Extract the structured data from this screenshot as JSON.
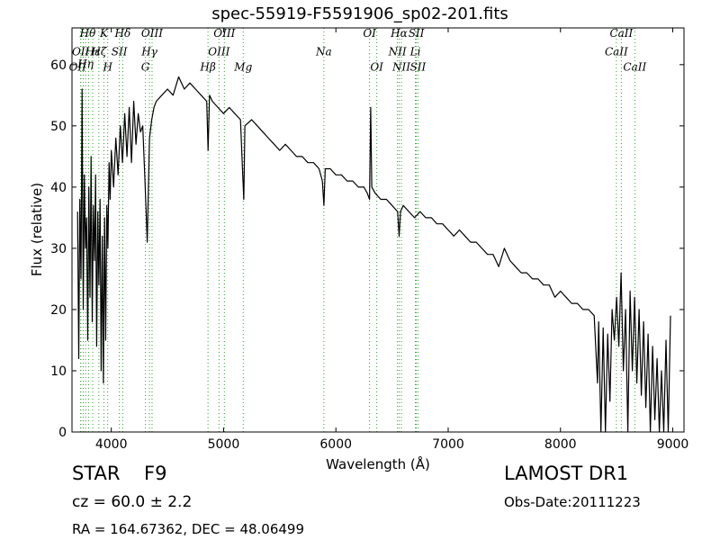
{
  "chart_data": {
    "type": "line",
    "title": "spec-55919-F5591906_sp02-201.fits",
    "xlabel": "Wavelength (Å)",
    "ylabel": "Flux (relative)",
    "xlim": [
      3650,
      9100
    ],
    "ylim": [
      0,
      66
    ],
    "xticks": [
      4000,
      5000,
      6000,
      7000,
      8000,
      9000
    ],
    "yticks": [
      0,
      10,
      20,
      30,
      40,
      50,
      60
    ],
    "grid": false,
    "line_color": "#000000",
    "marker_color": "#2ca02c",
    "series": [
      {
        "x": [
          3700,
          3710,
          3720,
          3730,
          3740,
          3750,
          3760,
          3770,
          3780,
          3790,
          3800,
          3810,
          3820,
          3830,
          3840,
          3850,
          3860,
          3870,
          3880,
          3890,
          3900,
          3910,
          3920,
          3930,
          3940,
          3950,
          3960,
          3970,
          3980,
          3990,
          4000,
          4020,
          4040,
          4060,
          4080,
          4100,
          4120,
          4140,
          4160,
          4180,
          4200,
          4220,
          4240,
          4260,
          4280,
          4300,
          4320,
          4340,
          4360,
          4380,
          4400,
          4450,
          4500,
          4550,
          4600,
          4650,
          4700,
          4750,
          4800,
          4850,
          4862,
          4875,
          4900,
          4950,
          5000,
          5050,
          5100,
          5150,
          5170,
          5180,
          5190,
          5250,
          5300,
          5350,
          5400,
          5450,
          5500,
          5550,
          5600,
          5650,
          5700,
          5750,
          5800,
          5850,
          5880,
          5893,
          5905,
          5950,
          6000,
          6050,
          6100,
          6150,
          6200,
          6250,
          6280,
          6300,
          6310,
          6320,
          6350,
          6400,
          6450,
          6500,
          6550,
          6563,
          6575,
          6600,
          6650,
          6700,
          6750,
          6800,
          6850,
          6900,
          6950,
          7000,
          7050,
          7100,
          7150,
          7200,
          7250,
          7300,
          7350,
          7400,
          7450,
          7500,
          7550,
          7600,
          7650,
          7700,
          7750,
          7800,
          7850,
          7900,
          7950,
          8000,
          8050,
          8100,
          8150,
          8200,
          8250,
          8300,
          8330,
          8340,
          8360,
          8380,
          8400,
          8420,
          8440,
          8460,
          8480,
          8500,
          8520,
          8540,
          8560,
          8580,
          8600,
          8620,
          8640,
          8660,
          8680,
          8700,
          8720,
          8740,
          8760,
          8780,
          8800,
          8820,
          8840,
          8860,
          8880,
          8900,
          8920,
          8940,
          8960,
          8980
        ],
        "values": [
          36,
          12,
          38,
          25,
          56,
          20,
          42,
          30,
          35,
          15,
          40,
          22,
          45,
          18,
          37,
          28,
          42,
          14,
          36,
          24,
          38,
          10,
          32,
          8,
          35,
          15,
          37,
          30,
          44,
          38,
          46,
          40,
          48,
          42,
          50,
          44,
          52,
          45,
          53,
          44,
          54,
          47,
          52,
          49,
          50,
          41,
          31,
          48,
          51,
          53,
          54,
          55,
          56,
          55,
          58,
          56,
          57,
          56,
          55,
          54,
          46,
          55,
          54,
          53,
          52,
          53,
          52,
          51,
          42,
          38,
          50,
          51,
          50,
          49,
          48,
          47,
          46,
          47,
          46,
          45,
          45,
          44,
          44,
          43,
          41,
          37,
          43,
          43,
          42,
          42,
          41,
          41,
          40,
          40,
          39,
          38,
          53,
          40,
          39,
          38,
          38,
          37,
          36,
          32,
          36,
          37,
          36,
          35,
          36,
          35,
          35,
          34,
          34,
          33,
          32,
          33,
          32,
          31,
          31,
          30,
          29,
          29,
          27,
          30,
          28,
          27,
          26,
          26,
          25,
          25,
          24,
          24,
          22,
          23,
          22,
          21,
          21,
          20,
          20,
          19,
          8,
          18,
          0,
          17,
          0,
          16,
          5,
          20,
          15,
          22,
          14,
          26,
          10,
          20,
          0,
          23,
          10,
          22,
          8,
          20,
          6,
          18,
          4,
          16,
          0,
          14,
          2,
          12,
          0,
          10,
          0,
          15,
          0,
          19
        ]
      }
    ],
    "lines": [
      {
        "x": 3727,
        "label": "OII"
      },
      {
        "x": 3729,
        "label": "OII"
      },
      {
        "x": 3750,
        "label": "Hθ"
      },
      {
        "x": 3771,
        "label": "Hη"
      },
      {
        "x": 3798,
        "label": "Hθ"
      },
      {
        "x": 3835,
        "label": "Hη"
      },
      {
        "x": 3889,
        "label": "Hζ"
      },
      {
        "x": 3934,
        "label": "K"
      },
      {
        "x": 3968,
        "label": "H"
      },
      {
        "x": 4072,
        "label": "SII"
      },
      {
        "x": 4102,
        "label": "Hδ"
      },
      {
        "x": 4304,
        "label": "G"
      },
      {
        "x": 4340,
        "label": "Hγ"
      },
      {
        "x": 4363,
        "label": "OIII"
      },
      {
        "x": 4861,
        "label": "Hβ"
      },
      {
        "x": 4959,
        "label": "OIII"
      },
      {
        "x": 5007,
        "label": "OIII"
      },
      {
        "x": 5175,
        "label": "Mg"
      },
      {
        "x": 5893,
        "label": "Na"
      },
      {
        "x": 6300,
        "label": "OI"
      },
      {
        "x": 6364,
        "label": "OI"
      },
      {
        "x": 6548,
        "label": "NII"
      },
      {
        "x": 6563,
        "label": "Hα"
      },
      {
        "x": 6583,
        "label": "NII"
      },
      {
        "x": 6708,
        "label": "Li"
      },
      {
        "x": 6716,
        "label": "SII"
      },
      {
        "x": 6731,
        "label": "SII"
      },
      {
        "x": 8498,
        "label": "CaII"
      },
      {
        "x": 8542,
        "label": "CaII"
      },
      {
        "x": 8662,
        "label": "CaII"
      }
    ],
    "line_labels": [
      {
        "text": "Hθ",
        "x": 3790,
        "y": 64.5
      },
      {
        "text": "K",
        "x": 3934,
        "y": 64.5
      },
      {
        "text": "Hδ",
        "x": 4102,
        "y": 64.5
      },
      {
        "text": "OIII",
        "x": 4363,
        "y": 64.5
      },
      {
        "text": "OIII",
        "x": 5007,
        "y": 64.5
      },
      {
        "text": "OI",
        "x": 6300,
        "y": 64.5
      },
      {
        "text": "Hα",
        "x": 6563,
        "y": 64.5
      },
      {
        "text": "SII",
        "x": 6716,
        "y": 64.5
      },
      {
        "text": "CaII",
        "x": 8542,
        "y": 64.5
      },
      {
        "text": "OII",
        "x": 3727,
        "y": 61.5
      },
      {
        "text": "Hε",
        "x": 3835,
        "y": 61.5
      },
      {
        "text": "SII",
        "x": 4072,
        "y": 61.5
      },
      {
        "text": "Hγ",
        "x": 4340,
        "y": 61.5
      },
      {
        "text": "OIII",
        "x": 4959,
        "y": 61.5
      },
      {
        "text": "Na",
        "x": 5893,
        "y": 61.5
      },
      {
        "text": "NII",
        "x": 6548,
        "y": 61.5
      },
      {
        "text": "Li",
        "x": 6708,
        "y": 61.5
      },
      {
        "text": "CaII",
        "x": 8498,
        "y": 61.5
      },
      {
        "text": "OII",
        "x": 3700,
        "y": 59
      },
      {
        "text": "Hη",
        "x": 3771,
        "y": 59.5
      },
      {
        "text": "Hζ",
        "x": 3889,
        "y": 61.5
      },
      {
        "text": "H",
        "x": 3968,
        "y": 59
      },
      {
        "text": "G",
        "x": 4304,
        "y": 59
      },
      {
        "text": "Hβ",
        "x": 4861,
        "y": 59
      },
      {
        "text": "Mg",
        "x": 5175,
        "y": 59
      },
      {
        "text": "OI",
        "x": 6364,
        "y": 59
      },
      {
        "text": "NII",
        "x": 6583,
        "y": 59
      },
      {
        "text": "SII",
        "x": 6731,
        "y": 59
      },
      {
        "text": "CaII",
        "x": 8662,
        "y": 59
      }
    ]
  },
  "info": {
    "object_class": "STAR",
    "subclass": "F9",
    "redshift": "cz = 60.0  ± 2.2",
    "coords": "RA = 164.67362, DEC = 48.06499",
    "release": "LAMOST DR1",
    "obs_date": "Obs-Date:20111223"
  }
}
